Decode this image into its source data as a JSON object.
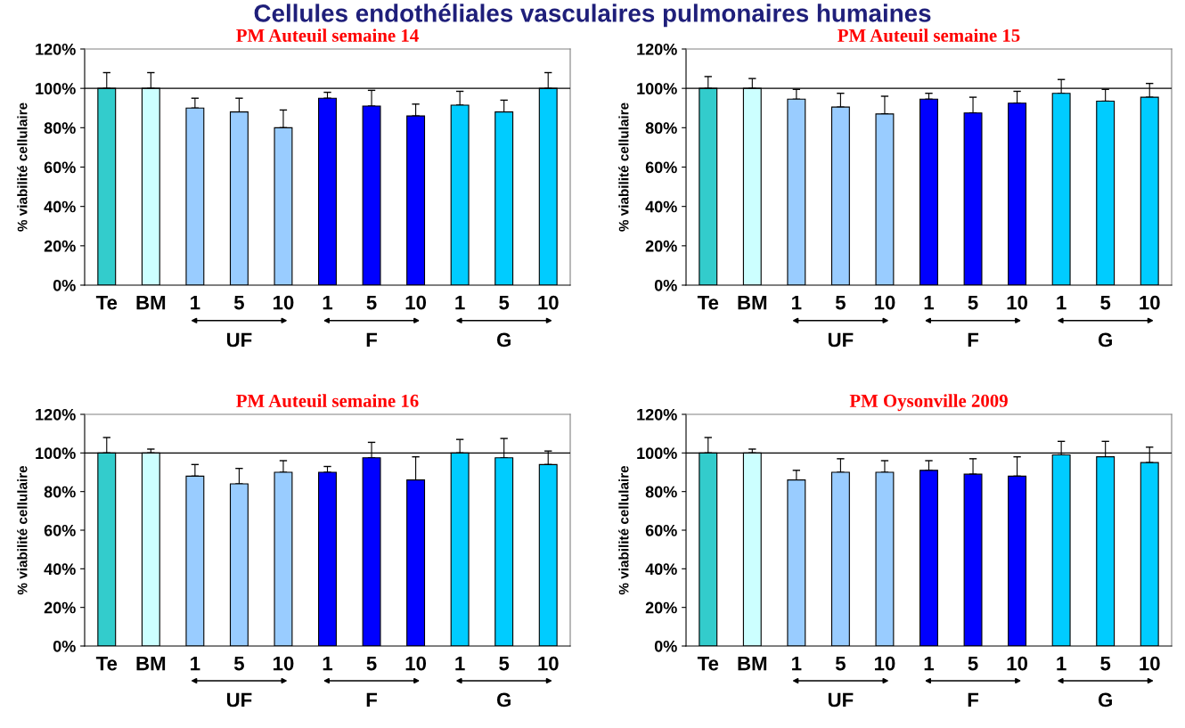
{
  "chart_data": [
    {
      "type": "bar",
      "title": "Cellules endothéliales vasculaires pulmonaires humaines",
      "subtitle": "PM Auteuil semaine 14",
      "ylabel": "% viabilité cellulaire",
      "categories": [
        "Te",
        "BM",
        "1",
        "5",
        "10",
        "1",
        "5",
        "10",
        "1",
        "5",
        "10"
      ],
      "values": [
        100,
        100,
        90,
        88,
        80,
        95,
        91,
        86,
        91.5,
        88,
        100
      ],
      "errors": [
        [
          100,
          108
        ],
        [
          100,
          108
        ],
        [
          90,
          95
        ],
        [
          88,
          95
        ],
        [
          80,
          89
        ],
        [
          95,
          98
        ],
        [
          91,
          99
        ],
        [
          86,
          92
        ],
        [
          91.5,
          98.5
        ],
        [
          88,
          94
        ],
        [
          100,
          108
        ]
      ],
      "colors": [
        "#33cccc",
        "#ccffff",
        "#99ccff",
        "#99ccff",
        "#99ccff",
        "#0000ff",
        "#0000ff",
        "#0000ff",
        "#00ccff",
        "#00ccff",
        "#00ccff"
      ],
      "ylim": [
        0,
        120
      ],
      "yticks": [
        {
          "value": 0,
          "label": "0%"
        },
        {
          "value": 20,
          "label": "20%"
        },
        {
          "value": 40,
          "label": "40%"
        },
        {
          "value": 60,
          "label": "60%"
        },
        {
          "value": 80,
          "label": "80%"
        },
        {
          "value": 100,
          "label": "100%"
        },
        {
          "value": 120,
          "label": "120%"
        }
      ],
      "ref_lines": [
        {
          "axis": "y",
          "value": 100,
          "color": "#000000"
        }
      ],
      "annotations": [
        "UF",
        "F",
        "G"
      ],
      "grid": false
    },
    {
      "type": "bar",
      "title": "PM Auteuil semaine 15",
      "ylabel": "% viabilité cellulaire",
      "categories": [
        "Te",
        "BM",
        "1",
        "5",
        "10",
        "1",
        "5",
        "10",
        "1",
        "5",
        "10"
      ],
      "values": [
        100,
        100,
        94.5,
        90.5,
        87,
        94.5,
        87.5,
        92.5,
        97.5,
        93.5,
        95.5
      ],
      "errors": [
        [
          100,
          106
        ],
        [
          100,
          105
        ],
        [
          94.5,
          99.5
        ],
        [
          90.5,
          97.5
        ],
        [
          87,
          96
        ],
        [
          94.5,
          97.5
        ],
        [
          87.5,
          95.5
        ],
        [
          92.5,
          98.5
        ],
        [
          97.5,
          104.5
        ],
        [
          93.5,
          99.5
        ],
        [
          95.5,
          102.5
        ]
      ],
      "colors": [
        "#33cccc",
        "#ccffff",
        "#99ccff",
        "#99ccff",
        "#99ccff",
        "#0000ff",
        "#0000ff",
        "#0000ff",
        "#00ccff",
        "#00ccff",
        "#00ccff"
      ],
      "ylim": [
        0,
        120
      ],
      "yticks": [
        {
          "value": 0,
          "label": "0%"
        },
        {
          "value": 20,
          "label": "20%"
        },
        {
          "value": 40,
          "label": "40%"
        },
        {
          "value": 60,
          "label": "60%"
        },
        {
          "value": 80,
          "label": "80%"
        },
        {
          "value": 100,
          "label": "100%"
        },
        {
          "value": 120,
          "label": "120%"
        }
      ],
      "ref_lines": [
        {
          "axis": "y",
          "value": 100,
          "color": "#000000"
        }
      ],
      "annotations": [
        "UF",
        "F",
        "G"
      ],
      "grid": false
    },
    {
      "type": "bar",
      "title": "PM Auteuil semaine 16",
      "ylabel": "% viabilité cellulaire",
      "categories": [
        "Te",
        "BM",
        "1",
        "5",
        "10",
        "1",
        "5",
        "10",
        "1",
        "5",
        "10"
      ],
      "values": [
        100,
        100,
        88,
        84,
        90,
        90,
        97.5,
        86,
        100,
        97.5,
        94
      ],
      "errors": [
        [
          100,
          108
        ],
        [
          100,
          102
        ],
        [
          88,
          94
        ],
        [
          84,
          92
        ],
        [
          90,
          96
        ],
        [
          90,
          93
        ],
        [
          97.5,
          105.5
        ],
        [
          86,
          98
        ],
        [
          100,
          107
        ],
        [
          97.5,
          107.5
        ],
        [
          94,
          101
        ]
      ],
      "colors": [
        "#33cccc",
        "#ccffff",
        "#99ccff",
        "#99ccff",
        "#99ccff",
        "#0000ff",
        "#0000ff",
        "#0000ff",
        "#00ccff",
        "#00ccff",
        "#00ccff"
      ],
      "ylim": [
        0,
        120
      ],
      "yticks": [
        {
          "value": 0,
          "label": "0%"
        },
        {
          "value": 20,
          "label": "20%"
        },
        {
          "value": 40,
          "label": "40%"
        },
        {
          "value": 60,
          "label": "60%"
        },
        {
          "value": 80,
          "label": "80%"
        },
        {
          "value": 100,
          "label": "100%"
        },
        {
          "value": 120,
          "label": "120%"
        }
      ],
      "ref_lines": [
        {
          "axis": "y",
          "value": 100,
          "color": "#000000"
        }
      ],
      "annotations": [
        "UF",
        "F",
        "G"
      ],
      "grid": false
    },
    {
      "type": "bar",
      "title": "PM Oysonville 2009",
      "ylabel": "% viabilité cellulaire",
      "categories": [
        "Te",
        "BM",
        "1",
        "5",
        "10",
        "1",
        "5",
        "10",
        "1",
        "5",
        "10"
      ],
      "values": [
        100,
        100,
        86,
        90,
        90,
        91,
        89,
        88,
        99,
        98,
        95
      ],
      "errors": [
        [
          100,
          108
        ],
        [
          100,
          102
        ],
        [
          86,
          91
        ],
        [
          90,
          97
        ],
        [
          90,
          96
        ],
        [
          91,
          96
        ],
        [
          89,
          97
        ],
        [
          88,
          98
        ],
        [
          99,
          106
        ],
        [
          98,
          106
        ],
        [
          95,
          103
        ]
      ],
      "colors": [
        "#33cccc",
        "#ccffff",
        "#99ccff",
        "#99ccff",
        "#99ccff",
        "#0000ff",
        "#0000ff",
        "#0000ff",
        "#00ccff",
        "#00ccff",
        "#00ccff"
      ],
      "ylim": [
        0,
        120
      ],
      "yticks": [
        {
          "value": 0,
          "label": "0%"
        },
        {
          "value": 20,
          "label": "20%"
        },
        {
          "value": 40,
          "label": "40%"
        },
        {
          "value": 60,
          "label": "60%"
        },
        {
          "value": 80,
          "label": "80%"
        },
        {
          "value": 100,
          "label": "100%"
        },
        {
          "value": 120,
          "label": "120%"
        }
      ],
      "ref_lines": [
        {
          "axis": "y",
          "value": 100,
          "color": "#000000"
        }
      ],
      "annotations": [
        "UF",
        "F",
        "G"
      ],
      "grid": false
    }
  ]
}
